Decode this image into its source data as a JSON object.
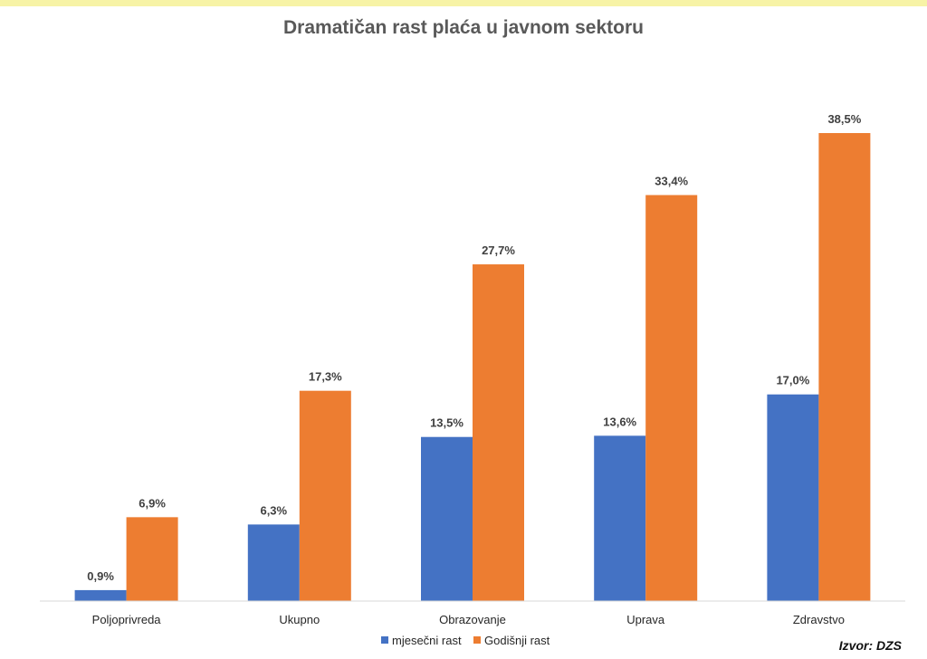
{
  "chart_data": {
    "type": "bar",
    "title": "Dramatičan rast plaća u javnom sektoru",
    "categories": [
      "Poljoprivreda",
      "Ukupno",
      "Obrazovanje",
      "Uprava",
      "Zdravstvo"
    ],
    "series": [
      {
        "name": "mjesečni rast",
        "color": "#4472c4",
        "values": [
          0.9,
          6.3,
          13.5,
          13.6,
          17.0
        ],
        "labels": [
          "0,9%",
          "6,3%",
          "13,5%",
          "13,6%",
          "17,0%"
        ]
      },
      {
        "name": "Godišnji rast",
        "color": "#ed7d31",
        "values": [
          6.9,
          17.3,
          27.7,
          33.4,
          38.5
        ],
        "labels": [
          "6,9%",
          "17,3%",
          "27,7%",
          "33,4%",
          "38,5%"
        ]
      }
    ],
    "ylim": [
      0,
      42
    ],
    "grid": false,
    "legend_position": "bottom",
    "source": "Izvor: DZS"
  }
}
